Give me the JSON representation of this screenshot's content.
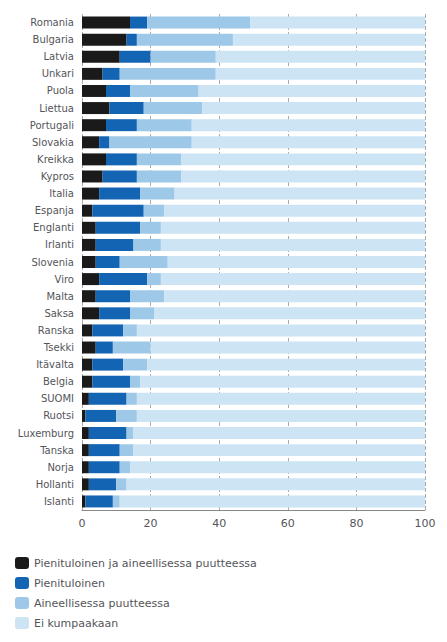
{
  "chart_data": {
    "type": "bar",
    "orientation": "horizontal",
    "stacked": true,
    "categories": [
      "Romania",
      "Bulgaria",
      "Latvia",
      "Unkari",
      "Puola",
      "Liettua",
      "Portugali",
      "Slovakia",
      "Kreikka",
      "Kypros",
      "Italia",
      "Espanja",
      "Englanti",
      "Irlanti",
      "Slovenia",
      "Viro",
      "Malta",
      "Saksa",
      "Ranska",
      "Tsekki",
      "Itävalta",
      "Belgia",
      "SUOMI",
      "Ruotsi",
      "Luxemburg",
      "Tanska",
      "Norja",
      "Hollanti",
      "Islanti"
    ],
    "series": [
      {
        "name": "Pienituloinen ja aineellisessa puutteessa",
        "color": "#1a1a1a",
        "values": [
          14,
          13,
          11,
          6,
          7,
          8,
          7,
          5,
          7,
          6,
          5,
          3,
          4,
          4,
          4,
          5,
          4,
          5,
          3,
          4,
          3,
          3,
          2,
          1,
          2,
          2,
          2,
          2,
          1
        ]
      },
      {
        "name": "Pienituloinen",
        "color": "#1464b4",
        "values": [
          5,
          3,
          9,
          5,
          7,
          10,
          9,
          3,
          9,
          10,
          12,
          15,
          13,
          11,
          7,
          14,
          10,
          9,
          9,
          5,
          9,
          11,
          11,
          9,
          11,
          9,
          9,
          8,
          8
        ]
      },
      {
        "name": "Aineellisessa puutteessa",
        "color": "#9ec8e8",
        "values": [
          30,
          28,
          19,
          28,
          20,
          17,
          16,
          24,
          13,
          13,
          10,
          6,
          6,
          8,
          14,
          4,
          10,
          7,
          4,
          11,
          7,
          3,
          3,
          6,
          2,
          4,
          3,
          3,
          2
        ]
      },
      {
        "name": "Ei kumpaakaan",
        "color": "#cce4f4",
        "values": [
          51,
          56,
          61,
          61,
          66,
          65,
          68,
          68,
          71,
          71,
          73,
          76,
          77,
          77,
          75,
          77,
          76,
          79,
          84,
          80,
          81,
          83,
          84,
          84,
          85,
          85,
          86,
          87,
          89
        ]
      }
    ],
    "xlim": [
      0,
      100
    ],
    "xticks": [
      0,
      20,
      40,
      60,
      80,
      100
    ],
    "grid": true,
    "legend": "lower left"
  }
}
